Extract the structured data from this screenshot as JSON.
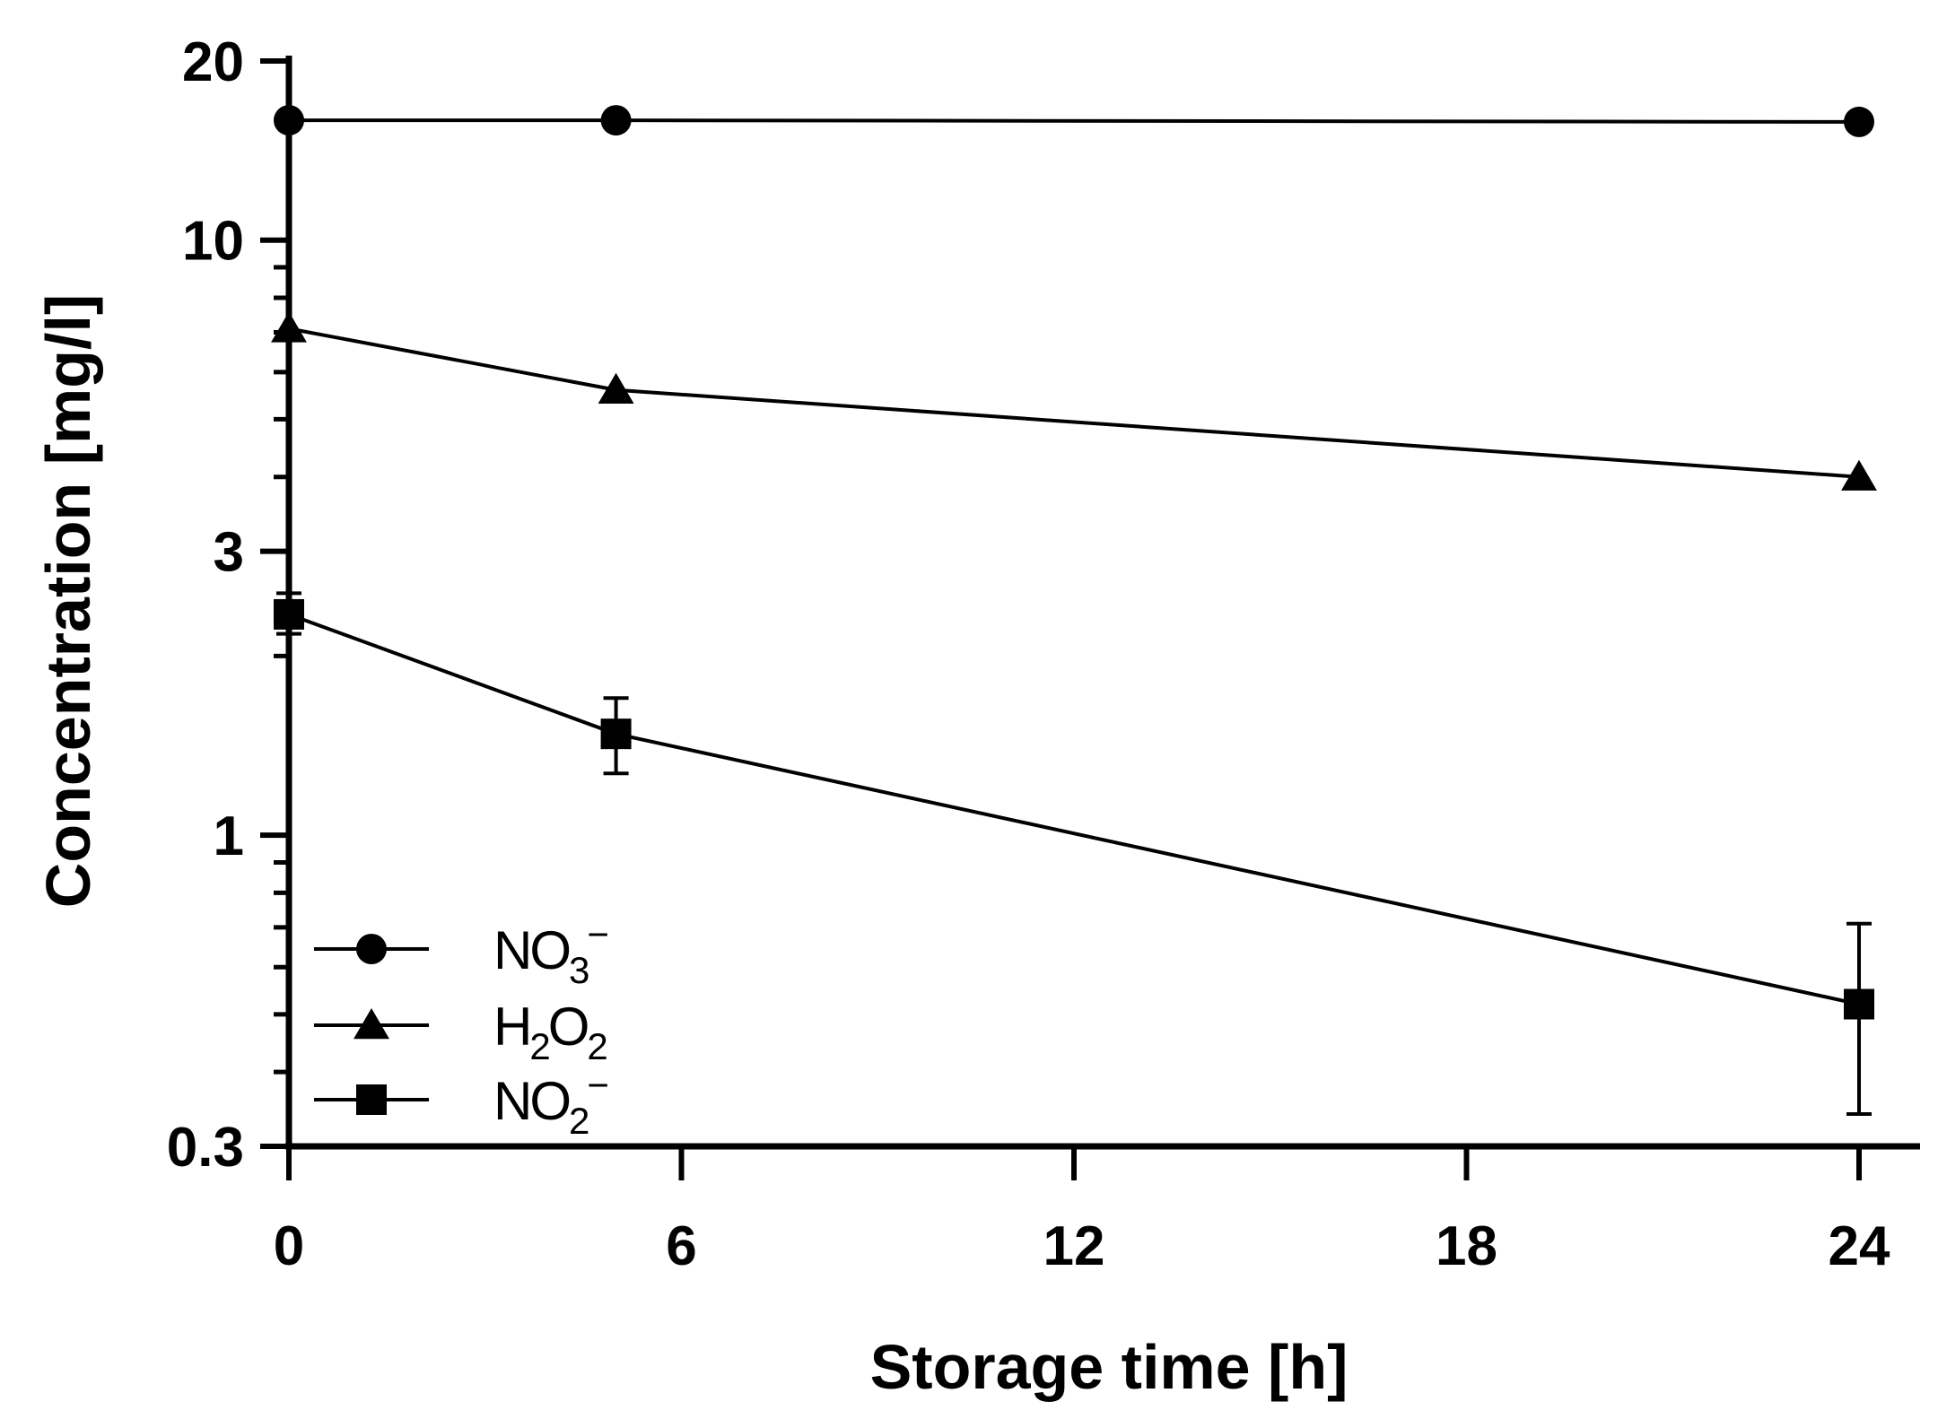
{
  "chart_data": {
    "type": "line",
    "xlabel": "Storage time [h]",
    "ylabel": "Concentration [mg/l]",
    "xlim": [
      0,
      25
    ],
    "ylim": [
      0.3,
      20
    ],
    "yscale": "log",
    "x_ticks": [
      0,
      6,
      12,
      18,
      24
    ],
    "x_tick_labels": [
      "0",
      "6",
      "12",
      "18",
      "24"
    ],
    "y_ticks": [
      0.3,
      1,
      3,
      10,
      20
    ],
    "y_tick_labels": [
      "0.3",
      "1",
      "3",
      "10",
      "20"
    ],
    "legend_position": "bottom-left",
    "grid": false,
    "series": [
      {
        "label": {
          "base": "NO",
          "sub": "3",
          "sup": "−"
        },
        "marker": "circle",
        "color": "#000000",
        "points": [
          {
            "x": 0,
            "y": 15.9
          },
          {
            "x": 5,
            "y": 15.9
          },
          {
            "x": 24,
            "y": 15.8
          }
        ]
      },
      {
        "label": {
          "base": "H",
          "sub": "2",
          "base2": "O",
          "sub2": "2"
        },
        "marker": "triangle",
        "color": "#000000",
        "points": [
          {
            "x": 0,
            "y": 7.1
          },
          {
            "x": 5,
            "y": 5.6
          },
          {
            "x": 24,
            "y": 4.0
          }
        ]
      },
      {
        "label": {
          "base": "NO",
          "sub": "2",
          "sup": "−"
        },
        "marker": "square",
        "color": "#000000",
        "points": [
          {
            "x": 0,
            "y": 2.35,
            "err_low": 2.18,
            "err_high": 2.55
          },
          {
            "x": 5,
            "y": 1.48,
            "err_low": 1.27,
            "err_high": 1.7
          },
          {
            "x": 24,
            "y": 0.52,
            "err_low": 0.34,
            "err_high": 0.71
          }
        ]
      }
    ]
  }
}
